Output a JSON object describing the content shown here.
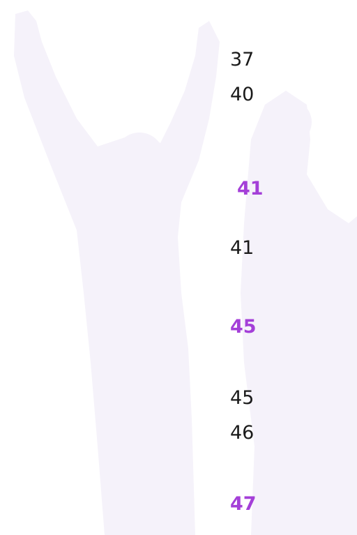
{
  "items": [
    {
      "text": "37",
      "highlighted": false
    },
    {
      "text": "40",
      "highlighted": false
    },
    {
      "text": "41",
      "highlighted": true
    },
    {
      "text": "41",
      "highlighted": false
    },
    {
      "text": "45",
      "highlighted": true
    },
    {
      "text": "45",
      "highlighted": false
    },
    {
      "text": "46",
      "highlighted": false
    },
    {
      "text": "47",
      "highlighted": true
    }
  ]
}
